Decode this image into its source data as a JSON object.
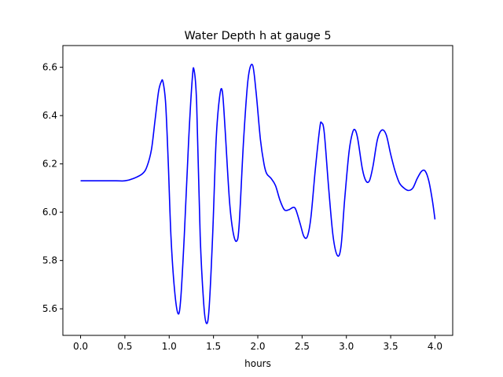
{
  "chart_data": {
    "type": "line",
    "title": "Water Depth h at gauge 5",
    "xlabel": "hours",
    "ylabel": "",
    "xlim": [
      -0.2,
      4.2
    ],
    "ylim": [
      5.49,
      6.69
    ],
    "xticks": [
      0.0,
      0.5,
      1.0,
      1.5,
      2.0,
      2.5,
      3.0,
      3.5,
      4.0
    ],
    "xtick_labels": [
      "0.0",
      "0.5",
      "1.0",
      "1.5",
      "2.0",
      "2.5",
      "3.0",
      "3.5",
      "4.0"
    ],
    "yticks": [
      5.6,
      5.8,
      6.0,
      6.2,
      6.4,
      6.6
    ],
    "ytick_labels": [
      "5.6",
      "5.8",
      "6.0",
      "6.2",
      "6.4",
      "6.6"
    ],
    "grid": false,
    "series": [
      {
        "color": "#0000ff",
        "points": [
          [
            0.0,
            6.13
          ],
          [
            0.2,
            6.13
          ],
          [
            0.4,
            6.13
          ],
          [
            0.5,
            6.13
          ],
          [
            0.6,
            6.14
          ],
          [
            0.7,
            6.16
          ],
          [
            0.75,
            6.19
          ],
          [
            0.8,
            6.26
          ],
          [
            0.84,
            6.38
          ],
          [
            0.88,
            6.5
          ],
          [
            0.91,
            6.54
          ],
          [
            0.93,
            6.54
          ],
          [
            0.96,
            6.45
          ],
          [
            0.99,
            6.2
          ],
          [
            1.02,
            5.9
          ],
          [
            1.06,
            5.68
          ],
          [
            1.1,
            5.58
          ],
          [
            1.13,
            5.64
          ],
          [
            1.17,
            5.9
          ],
          [
            1.22,
            6.3
          ],
          [
            1.26,
            6.55
          ],
          [
            1.28,
            6.59
          ],
          [
            1.31,
            6.45
          ],
          [
            1.35,
            5.9
          ],
          [
            1.39,
            5.62
          ],
          [
            1.42,
            5.54
          ],
          [
            1.45,
            5.6
          ],
          [
            1.49,
            5.9
          ],
          [
            1.53,
            6.3
          ],
          [
            1.57,
            6.48
          ],
          [
            1.6,
            6.5
          ],
          [
            1.63,
            6.35
          ],
          [
            1.68,
            6.05
          ],
          [
            1.72,
            5.92
          ],
          [
            1.76,
            5.88
          ],
          [
            1.79,
            5.95
          ],
          [
            1.84,
            6.3
          ],
          [
            1.89,
            6.55
          ],
          [
            1.94,
            6.61
          ],
          [
            1.98,
            6.5
          ],
          [
            2.03,
            6.3
          ],
          [
            2.07,
            6.2
          ],
          [
            2.1,
            6.16
          ],
          [
            2.15,
            6.14
          ],
          [
            2.2,
            6.11
          ],
          [
            2.25,
            6.05
          ],
          [
            2.3,
            6.01
          ],
          [
            2.35,
            6.01
          ],
          [
            2.4,
            6.02
          ],
          [
            2.43,
            6.01
          ],
          [
            2.48,
            5.95
          ],
          [
            2.52,
            5.9
          ],
          [
            2.56,
            5.9
          ],
          [
            2.6,
            5.98
          ],
          [
            2.65,
            6.18
          ],
          [
            2.7,
            6.35
          ],
          [
            2.72,
            6.37
          ],
          [
            2.75,
            6.33
          ],
          [
            2.8,
            6.1
          ],
          [
            2.85,
            5.9
          ],
          [
            2.9,
            5.82
          ],
          [
            2.94,
            5.86
          ],
          [
            2.98,
            6.05
          ],
          [
            3.03,
            6.25
          ],
          [
            3.07,
            6.33
          ],
          [
            3.1,
            6.34
          ],
          [
            3.13,
            6.3
          ],
          [
            3.18,
            6.18
          ],
          [
            3.22,
            6.13
          ],
          [
            3.26,
            6.13
          ],
          [
            3.3,
            6.19
          ],
          [
            3.35,
            6.3
          ],
          [
            3.4,
            6.34
          ],
          [
            3.45,
            6.32
          ],
          [
            3.5,
            6.24
          ],
          [
            3.55,
            6.17
          ],
          [
            3.6,
            6.12
          ],
          [
            3.65,
            6.1
          ],
          [
            3.7,
            6.09
          ],
          [
            3.75,
            6.1
          ],
          [
            3.8,
            6.14
          ],
          [
            3.85,
            6.17
          ],
          [
            3.89,
            6.17
          ],
          [
            3.93,
            6.13
          ],
          [
            3.97,
            6.05
          ],
          [
            4.0,
            5.97
          ]
        ]
      }
    ]
  }
}
